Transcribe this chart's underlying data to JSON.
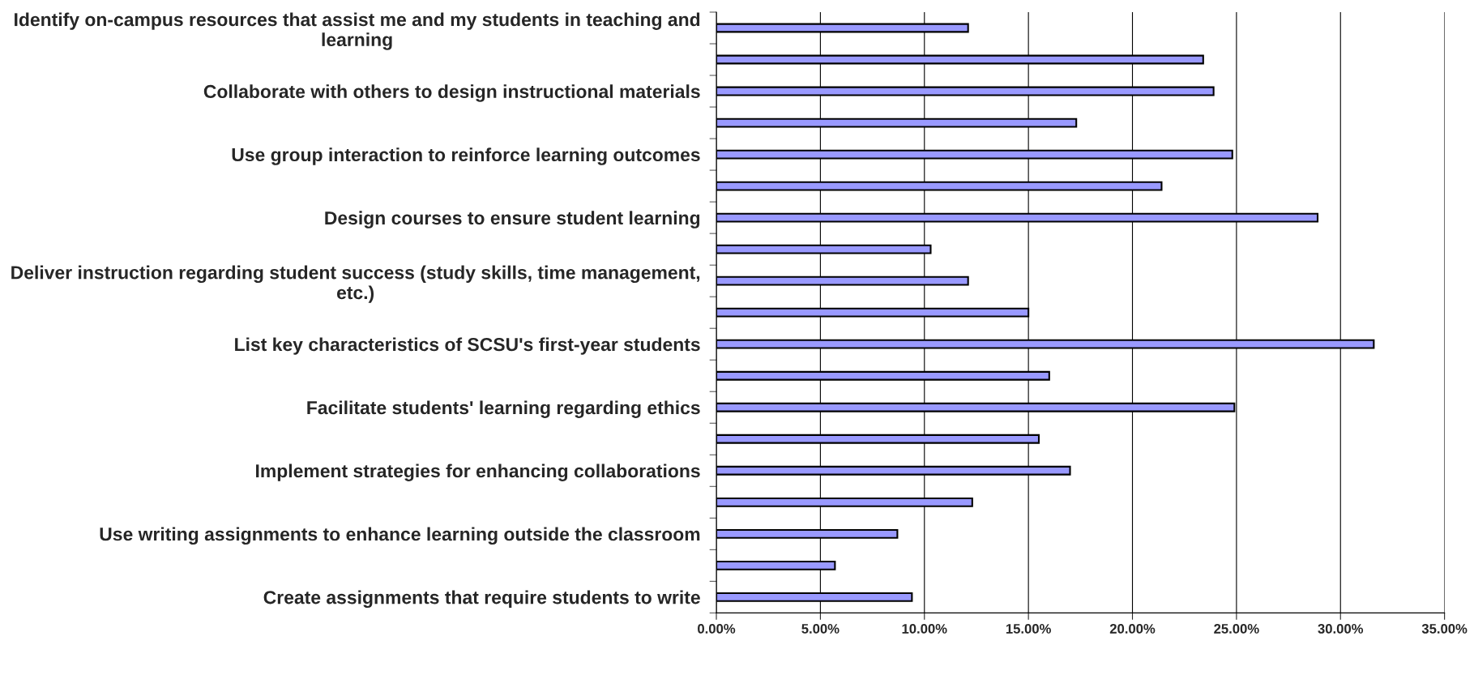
{
  "chart_data": {
    "type": "bar",
    "orientation": "horizontal",
    "categories": [
      "Identify on-campus resources that assist me and my students in teaching and learning",
      null,
      "Collaborate with others to design instructional materials",
      null,
      "Use group interaction to reinforce learning outcomes",
      null,
      "Design courses to ensure student learning",
      null,
      "Deliver instruction regarding student success (study skills, time management, etc.)",
      null,
      "List key characteristics of SCSU's first-year students",
      null,
      "Facilitate students' learning regarding ethics",
      null,
      "Implement strategies for enhancing collaborations",
      null,
      "Use writing assignments to enhance learning outside the classroom",
      null,
      "Create assignments that require students to write"
    ],
    "values": [
      12.1,
      23.4,
      23.9,
      17.3,
      24.8,
      21.4,
      28.9,
      10.3,
      12.1,
      15.0,
      31.6,
      16.0,
      24.9,
      15.5,
      17.0,
      12.3,
      8.7,
      5.7,
      9.4
    ],
    "color": "#9999ff",
    "xlim": [
      0,
      35
    ],
    "xticks": [
      {
        "value": 0,
        "label": "0.00%"
      },
      {
        "value": 5,
        "label": "5.00%"
      },
      {
        "value": 10,
        "label": "10.00%"
      },
      {
        "value": 15,
        "label": "15.00%"
      },
      {
        "value": 20,
        "label": "20.00%"
      },
      {
        "value": 25,
        "label": "25.00%"
      },
      {
        "value": 30,
        "label": "30.00%"
      },
      {
        "value": 35,
        "label": "35.00%"
      }
    ],
    "grid": "x",
    "legend": false
  }
}
